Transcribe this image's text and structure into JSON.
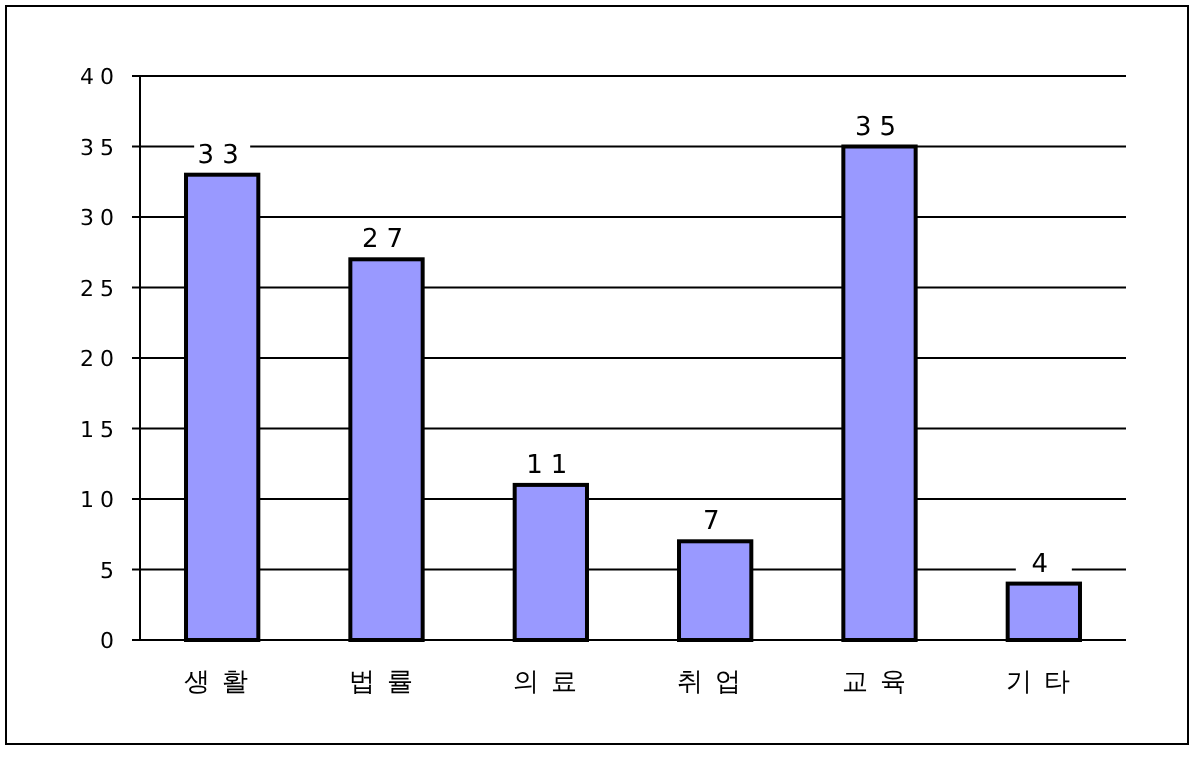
{
  "chart_data": {
    "type": "bar",
    "categories": [
      "생활",
      "법률",
      "의료",
      "취업",
      "교육",
      "기타"
    ],
    "values": [
      33,
      27,
      11,
      7,
      35,
      4
    ],
    "color": "#9999ff",
    "ylim": [
      0,
      40
    ],
    "yticks": [
      0,
      5,
      10,
      15,
      20,
      25,
      30,
      35,
      40
    ],
    "grid": "y",
    "data_labels": true
  }
}
